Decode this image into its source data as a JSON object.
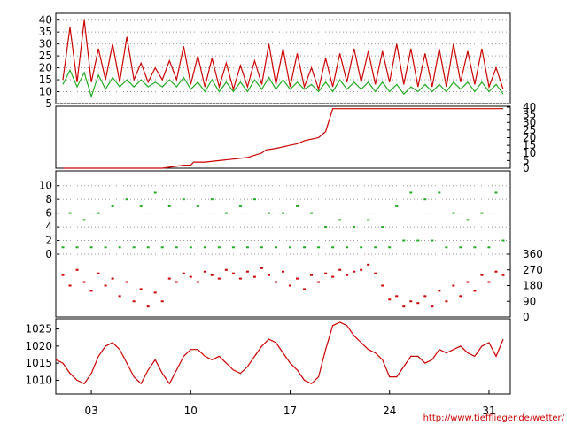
{
  "credit": "http://www.tiefflieger.de/wetter/",
  "colors": {
    "primary": "#cc0000",
    "secondary": "#22aa22",
    "axis": "#000000",
    "grid": "#999999"
  },
  "chart_data": [
    {
      "id": "temperature",
      "type": "line",
      "y_ticks": [
        "5",
        "10",
        "15",
        "20",
        "25",
        "30",
        "35",
        "40"
      ],
      "ylim": [
        5,
        41
      ],
      "series": [
        {
          "color": "red",
          "x": [
            1,
            1.5,
            2,
            2.5,
            3,
            3.5,
            4,
            4.5,
            5,
            5.5,
            6,
            6.5,
            7,
            7.5,
            8,
            8.5,
            9,
            9.5,
            10,
            10.5,
            11,
            11.5,
            12,
            12.5,
            13,
            13.5,
            14,
            14.5,
            15,
            15.5,
            16,
            16.5,
            17,
            17.5,
            18,
            18.5,
            19,
            19.5,
            20,
            20.5,
            21,
            21.5,
            22,
            22.5,
            23,
            23.5,
            24,
            24.5,
            25,
            25.5,
            26,
            26.5,
            27,
            27.5,
            28,
            28.5,
            29,
            29.5,
            30,
            30.5,
            31,
            31.5,
            32
          ],
          "values": [
            15,
            37,
            14,
            40,
            14,
            28,
            15,
            30,
            14,
            33,
            15,
            22,
            14,
            20,
            15,
            23,
            15,
            29,
            13,
            25,
            12,
            24,
            12,
            22,
            11,
            21,
            12,
            23,
            13,
            30,
            13,
            28,
            12,
            26,
            12,
            20,
            11,
            24,
            12,
            26,
            14,
            28,
            14,
            27,
            13,
            27,
            14,
            30,
            13,
            28,
            12,
            26,
            12,
            28,
            12,
            30,
            14,
            27,
            13,
            28,
            12,
            20,
            11
          ]
        },
        {
          "color": "green",
          "x": [
            1,
            1.5,
            2,
            2.5,
            3,
            3.5,
            4,
            4.5,
            5,
            5.5,
            6,
            6.5,
            7,
            7.5,
            8,
            8.5,
            9,
            9.5,
            10,
            10.5,
            11,
            11.5,
            12,
            12.5,
            13,
            13.5,
            14,
            14.5,
            15,
            15.5,
            16,
            16.5,
            17,
            17.5,
            18,
            18.5,
            19,
            19.5,
            20,
            20.5,
            21,
            21.5,
            22,
            22.5,
            23,
            23.5,
            24,
            24.5,
            25,
            25.5,
            26,
            26.5,
            27,
            27.5,
            28,
            28.5,
            29,
            29.5,
            30,
            30.5,
            31,
            31.5,
            32
          ],
          "values": [
            13,
            19,
            12,
            18,
            8,
            17,
            11,
            16,
            12,
            15,
            12,
            15,
            12,
            14,
            12,
            15,
            12,
            16,
            11,
            14,
            10,
            15,
            10,
            14,
            10,
            14,
            10,
            15,
            11,
            16,
            11,
            15,
            11,
            14,
            11,
            13,
            10,
            14,
            10,
            15,
            11,
            14,
            11,
            14,
            10,
            14,
            10,
            13,
            9,
            12,
            10,
            13,
            10,
            13,
            10,
            14,
            11,
            14,
            10,
            14,
            10,
            13,
            9
          ]
        }
      ]
    },
    {
      "id": "rain",
      "type": "line",
      "y_ticks": [
        "0",
        "5",
        "10",
        "15",
        "20",
        "25",
        "30",
        "35",
        "40"
      ],
      "ylim": [
        0,
        40
      ],
      "series": [
        {
          "color": "red",
          "x": [
            1,
            2,
            4,
            6,
            8,
            9.5,
            10,
            10.2,
            11,
            12,
            13,
            14,
            15,
            15.3,
            16,
            17,
            17.5,
            18,
            19,
            19.5,
            19.8,
            20,
            21,
            24,
            28,
            32
          ],
          "values": [
            0,
            0,
            0,
            0,
            0,
            2,
            2,
            4,
            4,
            5,
            6,
            7,
            10,
            12,
            13,
            15,
            16,
            18,
            20,
            24,
            33,
            39,
            39,
            39,
            39,
            39
          ]
        }
      ]
    },
    {
      "id": "wind-speed",
      "type": "scatter",
      "y_ticks": [
        "0",
        "2",
        "4",
        "6",
        "8",
        "10"
      ],
      "ylim": [
        0,
        11
      ],
      "series": [
        {
          "color": "green",
          "x": [
            1,
            1.5,
            2,
            2.5,
            3,
            3.5,
            4,
            4.5,
            5,
            5.5,
            6,
            6.5,
            7,
            7.5,
            8,
            8.5,
            9,
            9.5,
            10,
            10.5,
            11,
            11.5,
            12,
            12.5,
            13,
            13.5,
            14,
            14.5,
            15,
            15.5,
            16,
            16.5,
            17,
            17.5,
            18,
            18.5,
            19,
            19.5,
            20,
            20.5,
            21,
            21.5,
            22,
            22.5,
            23,
            23.5,
            24,
            24.5,
            25,
            25.5,
            26,
            26.5,
            27,
            27.5,
            28,
            28.5,
            29,
            29.5,
            30,
            30.5,
            31,
            31.5,
            32
          ],
          "values": [
            1,
            6,
            1,
            5,
            1,
            6,
            1,
            7,
            1,
            8,
            1,
            7,
            1,
            9,
            1,
            7,
            1,
            8,
            1,
            7,
            1,
            8,
            1,
            6,
            1,
            7,
            1,
            8,
            1,
            6,
            1,
            6,
            1,
            7,
            1,
            6,
            1,
            4,
            1,
            5,
            1,
            4,
            1,
            5,
            1,
            4,
            1,
            7,
            2,
            9,
            2,
            8,
            2,
            9,
            1,
            6,
            1,
            5,
            1,
            6,
            1,
            9,
            2
          ]
        }
      ]
    },
    {
      "id": "wind-direction",
      "type": "scatter",
      "y_ticks": [
        "0",
        "90",
        "180",
        "270",
        "360"
      ],
      "ylim": [
        0,
        360
      ],
      "series": [
        {
          "color": "red",
          "x": [
            1,
            1.5,
            2,
            2.5,
            3,
            3.5,
            4,
            4.5,
            5,
            5.5,
            6,
            6.5,
            7,
            7.5,
            8,
            8.5,
            9,
            9.5,
            10,
            10.5,
            11,
            11.5,
            12,
            12.5,
            13,
            13.5,
            14,
            14.5,
            15,
            15.5,
            16,
            16.5,
            17,
            17.5,
            18,
            18.5,
            19,
            19.5,
            20,
            20.5,
            21,
            21.5,
            22,
            22.5,
            23,
            23.5,
            24,
            24.5,
            25,
            25.5,
            26,
            26.5,
            27,
            27.5,
            28,
            28.5,
            29,
            29.5,
            30,
            30.5,
            31,
            31.5,
            32
          ],
          "values": [
            240,
            180,
            270,
            200,
            150,
            250,
            180,
            220,
            120,
            200,
            90,
            160,
            60,
            140,
            90,
            220,
            200,
            250,
            230,
            200,
            260,
            240,
            220,
            270,
            250,
            220,
            260,
            230,
            280,
            240,
            200,
            260,
            180,
            220,
            160,
            240,
            200,
            250,
            230,
            270,
            240,
            260,
            270,
            300,
            250,
            180,
            100,
            120,
            60,
            90,
            80,
            120,
            60,
            150,
            90,
            180,
            120,
            200,
            150,
            240,
            200,
            260,
            240
          ]
        }
      ]
    },
    {
      "id": "pressure",
      "type": "line",
      "y_ticks": [
        "1010",
        "1015",
        "1020",
        "1025"
      ],
      "ylim": [
        1007,
        1028
      ],
      "x_ticks": [
        "03",
        "10",
        "17",
        "24",
        "31"
      ],
      "x_tick_days": [
        3,
        10,
        17,
        24,
        31
      ],
      "series": [
        {
          "color": "red",
          "x": [
            0.5,
            1,
            1.5,
            2,
            2.5,
            3,
            3.5,
            4,
            4.5,
            5,
            5.5,
            6,
            6.5,
            7,
            7.5,
            8,
            8.5,
            9,
            9.5,
            10,
            10.5,
            11,
            11.5,
            12,
            12.5,
            13,
            13.5,
            14,
            14.5,
            15,
            15.5,
            16,
            16.5,
            17,
            17.5,
            18,
            18.5,
            19,
            19.5,
            20,
            20.5,
            21,
            21.5,
            22,
            22.5,
            23,
            23.5,
            24,
            24.5,
            25,
            25.5,
            26,
            26.5,
            27,
            27.5,
            28,
            28.5,
            29,
            29.5,
            30,
            30.5,
            31,
            31.5,
            32
          ],
          "values": [
            1016,
            1015,
            1012,
            1010,
            1009,
            1012,
            1017,
            1020,
            1021,
            1019,
            1015,
            1011,
            1009,
            1013,
            1016,
            1012,
            1009,
            1013,
            1017,
            1019,
            1019,
            1017,
            1016,
            1017,
            1015,
            1013,
            1012,
            1014,
            1017,
            1020,
            1022,
            1021,
            1018,
            1015,
            1013,
            1010,
            1009,
            1011,
            1019,
            1026,
            1027,
            1026,
            1023,
            1021,
            1019,
            1018,
            1016,
            1011,
            1011,
            1014,
            1017,
            1017,
            1015,
            1016,
            1019,
            1018,
            1019,
            1020,
            1018,
            1017,
            1020,
            1021,
            1017,
            1022
          ]
        }
      ]
    }
  ]
}
